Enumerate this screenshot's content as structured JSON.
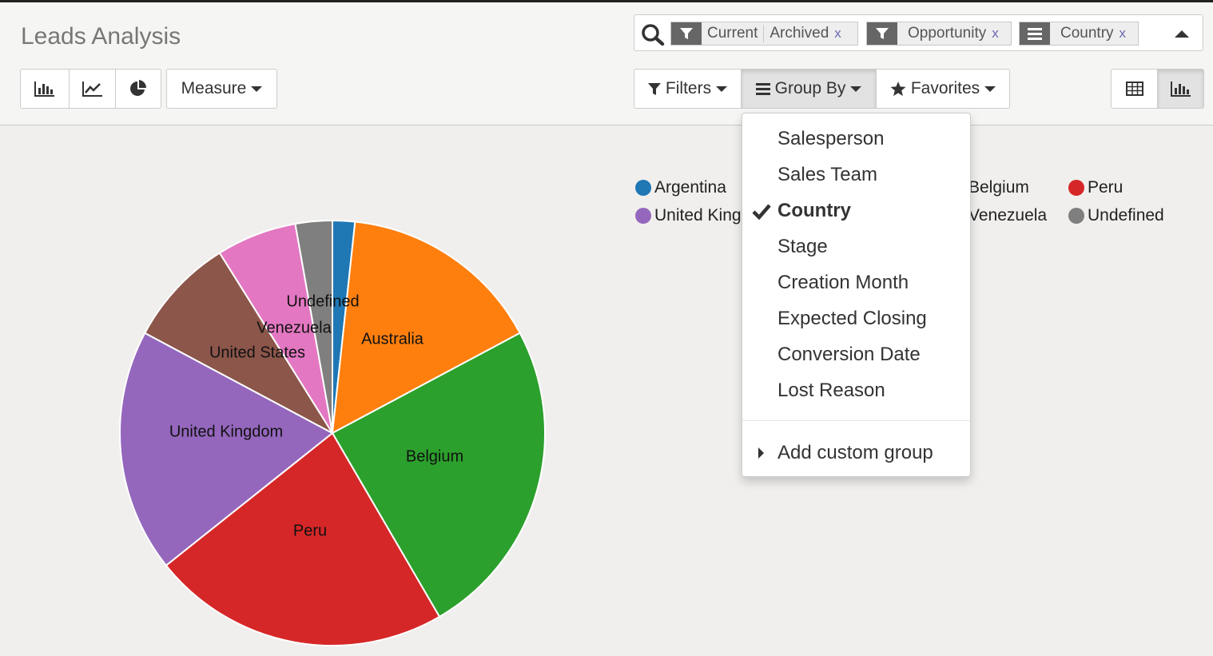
{
  "header": {
    "title": "Leads Analysis"
  },
  "search": {
    "facets": [
      {
        "icon": "filter-icon",
        "values": [
          "Current",
          "Archived"
        ],
        "remove": "x"
      },
      {
        "icon": "filter-icon",
        "values": [
          "Opportunity"
        ],
        "remove": "x"
      },
      {
        "icon": "group-by-icon",
        "values": [
          "Country"
        ],
        "remove": "x"
      }
    ]
  },
  "toolbar": {
    "chart_modes": [
      "bar-chart-icon",
      "line-chart-icon",
      "pie-chart-icon"
    ],
    "measure_label": "Measure",
    "filters_label": "Filters",
    "groupby_label": "Group By",
    "favorites_label": "Favorites",
    "views": [
      "table-view-icon",
      "graph-view-icon"
    ]
  },
  "groupby_menu": {
    "items": [
      "Salesperson",
      "Sales Team",
      "Country",
      "Stage",
      "Creation Month",
      "Expected Closing",
      "Conversion Date",
      "Lost Reason"
    ],
    "selected": "Country",
    "custom": "Add custom group"
  },
  "chart_data": {
    "type": "pie",
    "series": [
      {
        "name": "Argentina",
        "value": 1.7,
        "color": "#1f77b4"
      },
      {
        "name": "Australia",
        "value": 15.5,
        "color": "#ff7f0e"
      },
      {
        "name": "Belgium",
        "value": 24.4,
        "color": "#2ca02c"
      },
      {
        "name": "Peru",
        "value": 22.7,
        "color": "#d62728"
      },
      {
        "name": "United Kingdom",
        "value": 18.5,
        "color": "#9467bd"
      },
      {
        "name": "United States",
        "value": 8.3,
        "color": "#8c564b"
      },
      {
        "name": "Venezuela",
        "value": 6.1,
        "color": "#e377c2"
      },
      {
        "name": "Undefined",
        "value": 2.8,
        "color": "#7f7f7f"
      }
    ],
    "legend": {
      "visible_labels": [
        "Argentina",
        "Belgium",
        "Peru",
        "United King",
        "Venezuela",
        "Undefined"
      ],
      "placement": "top-right"
    }
  }
}
